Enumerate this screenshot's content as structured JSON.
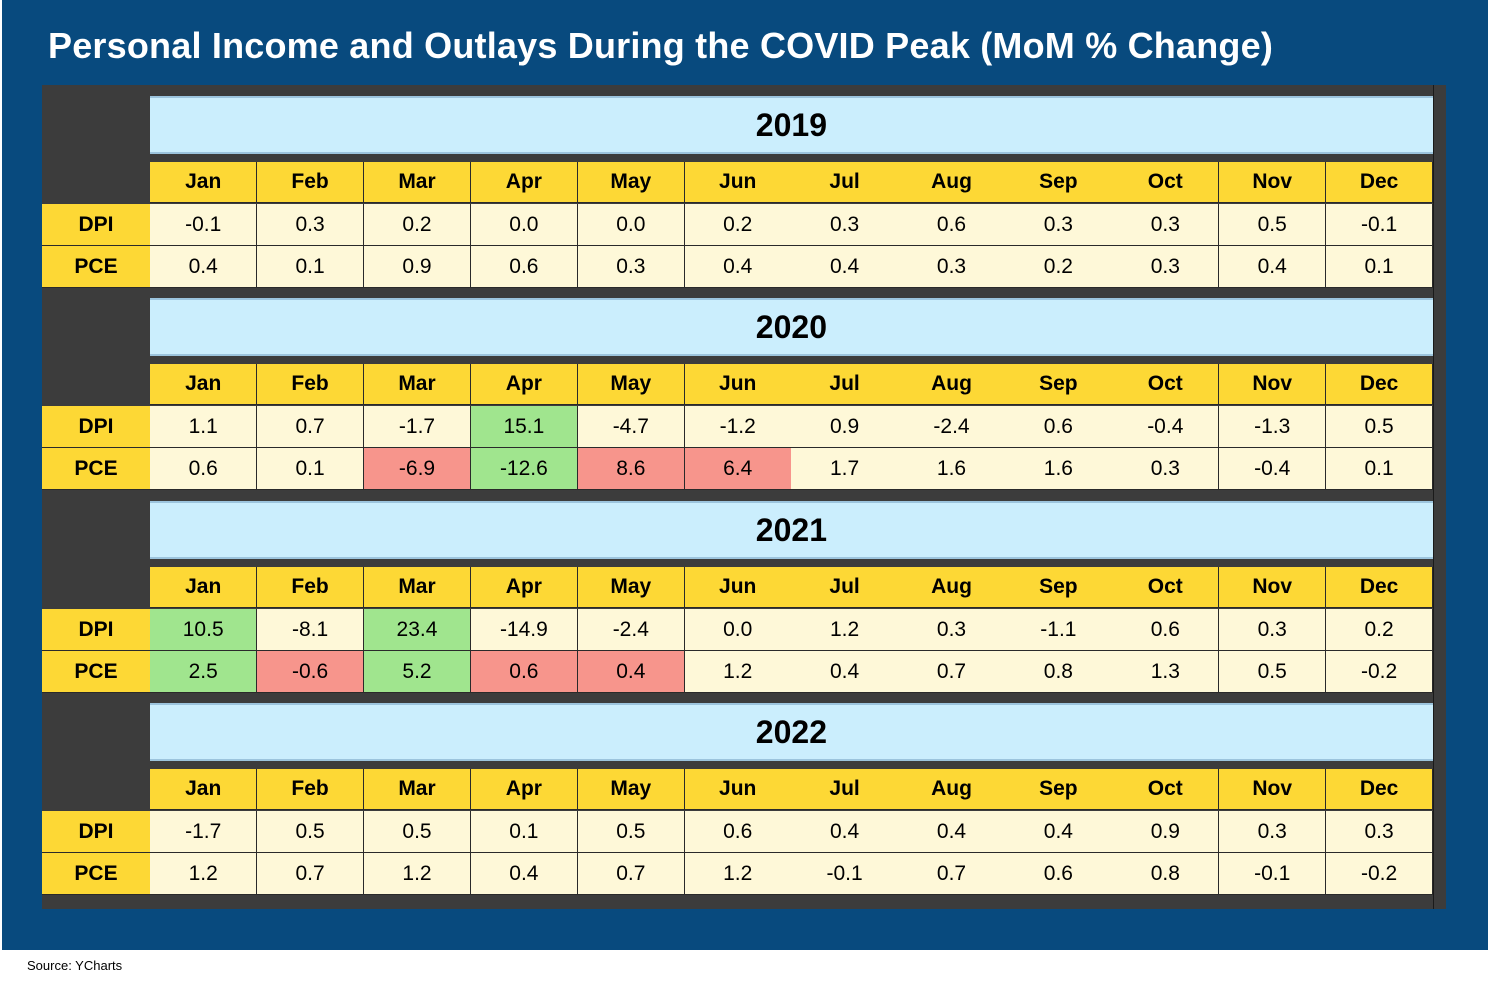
{
  "title": "Personal Income and Outlays During the COVID Peak (MoM % Change)",
  "source": "Source: YCharts",
  "colors": {
    "frame": "#084a7e",
    "year_band": "#cbeefd",
    "header": "#fdd835",
    "neutral_cell": "#fef8d8",
    "green_cell": "#a0e58e",
    "red_cell": "#f7958c",
    "corner": "#3c3c3c"
  },
  "chart_data": {
    "type": "table",
    "months": [
      "Jan",
      "Feb",
      "Mar",
      "Apr",
      "May",
      "Jun",
      "Jul",
      "Aug",
      "Sep",
      "Oct",
      "Nov",
      "Dec"
    ],
    "years": [
      {
        "year": "2019",
        "rows": [
          {
            "label": "DPI",
            "values": [
              "-0.1",
              "0.3",
              "0.2",
              "0.0",
              "0.0",
              "0.2",
              "0.3",
              "0.6",
              "0.3",
              "0.3",
              "0.5",
              "-0.1"
            ],
            "highlight": [
              "",
              "",
              "",
              "",
              "",
              "",
              "",
              "",
              "",
              "",
              "",
              ""
            ]
          },
          {
            "label": "PCE",
            "values": [
              "0.4",
              "0.1",
              "0.9",
              "0.6",
              "0.3",
              "0.4",
              "0.4",
              "0.3",
              "0.2",
              "0.3",
              "0.4",
              "0.1"
            ],
            "highlight": [
              "",
              "",
              "",
              "",
              "",
              "",
              "",
              "",
              "",
              "",
              "",
              ""
            ]
          }
        ]
      },
      {
        "year": "2020",
        "rows": [
          {
            "label": "DPI",
            "values": [
              "1.1",
              "0.7",
              "-1.7",
              "15.1",
              "-4.7",
              "-1.2",
              "0.9",
              "-2.4",
              "0.6",
              "-0.4",
              "-1.3",
              "0.5"
            ],
            "highlight": [
              "",
              "",
              "",
              "green",
              "",
              "",
              "",
              "",
              "",
              "",
              "",
              ""
            ]
          },
          {
            "label": "PCE",
            "values": [
              "0.6",
              "0.1",
              "-6.9",
              "-12.6",
              "8.6",
              "6.4",
              "1.7",
              "1.6",
              "1.6",
              "0.3",
              "-0.4",
              "0.1"
            ],
            "highlight": [
              "",
              "",
              "red",
              "green",
              "red",
              "red",
              "",
              "",
              "",
              "",
              "",
              ""
            ]
          }
        ]
      },
      {
        "year": "2021",
        "rows": [
          {
            "label": "DPI",
            "values": [
              "10.5",
              "-8.1",
              "23.4",
              "-14.9",
              "-2.4",
              "0.0",
              "1.2",
              "0.3",
              "-1.1",
              "0.6",
              "0.3",
              "0.2"
            ],
            "highlight": [
              "green",
              "",
              "green",
              "",
              "",
              "",
              "",
              "",
              "",
              "",
              "",
              ""
            ]
          },
          {
            "label": "PCE",
            "values": [
              "2.5",
              "-0.6",
              "5.2",
              "0.6",
              "0.4",
              "1.2",
              "0.4",
              "0.7",
              "0.8",
              "1.3",
              "0.5",
              "-0.2"
            ],
            "highlight": [
              "green",
              "red",
              "green",
              "red",
              "red",
              "",
              "",
              "",
              "",
              "",
              "",
              ""
            ]
          }
        ]
      },
      {
        "year": "2022",
        "rows": [
          {
            "label": "DPI",
            "values": [
              "-1.7",
              "0.5",
              "0.5",
              "0.1",
              "0.5",
              "0.6",
              "0.4",
              "0.4",
              "0.4",
              "0.9",
              "0.3",
              "0.3"
            ],
            "highlight": [
              "",
              "",
              "",
              "",
              "",
              "",
              "",
              "",
              "",
              "",
              "",
              ""
            ]
          },
          {
            "label": "PCE",
            "values": [
              "1.2",
              "0.7",
              "1.2",
              "0.4",
              "0.7",
              "1.2",
              "-0.1",
              "0.7",
              "0.6",
              "0.8",
              "-0.1",
              "-0.2"
            ],
            "highlight": [
              "",
              "",
              "",
              "",
              "",
              "",
              "",
              "",
              "",
              "",
              "",
              ""
            ]
          }
        ]
      }
    ]
  }
}
